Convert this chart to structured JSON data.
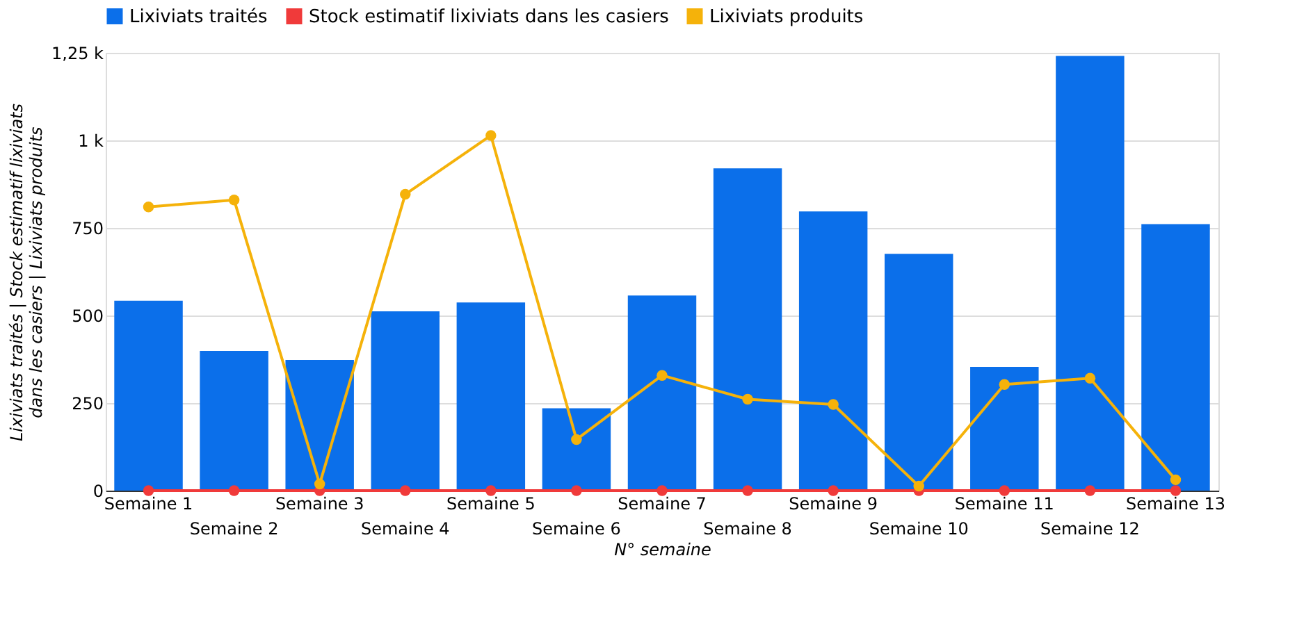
{
  "chart_data": {
    "type": "bar",
    "xlabel": "N° semaine",
    "ylabel": "Lixiviats traités | Stock estimatif lixiviats dans les casiers | Lixiviats produits",
    "categories": [
      "Semaine 1",
      "Semaine 2",
      "Semaine 3",
      "Semaine 4",
      "Semaine 5",
      "Semaine 6",
      "Semaine 7",
      "Semaine 8",
      "Semaine 9",
      "Semaine 10",
      "Semaine 11",
      "Semaine 12",
      "Semaine 13"
    ],
    "series": [
      {
        "name": "Lixiviats traités",
        "color": "#0b6fea",
        "values": [
          542,
          399,
          373,
          512,
          537,
          235,
          557,
          920,
          797,
          676,
          353,
          1241,
          761
        ]
      },
      {
        "name": "Stock estimatif lixiviats dans les casiers",
        "color": "#f03a3a",
        "type": "line",
        "values": [
          0,
          0,
          0,
          0,
          0,
          0,
          0,
          0,
          0,
          0,
          0,
          0,
          0
        ]
      },
      {
        "name": "Lixiviats produits",
        "color": "#f5b20a",
        "type": "line",
        "values": [
          810,
          830,
          19,
          846,
          1014,
          146,
          329,
          261,
          246,
          13,
          303,
          321,
          31
        ]
      }
    ],
    "ylim": [
      0,
      1250
    ],
    "yticks": [
      0,
      250,
      500,
      750,
      {
        "value": 1000,
        "label": "1 k"
      },
      {
        "value": 1250,
        "label": "1,25 k"
      }
    ],
    "grid": "y",
    "legend": "top",
    "marker": "circle"
  }
}
